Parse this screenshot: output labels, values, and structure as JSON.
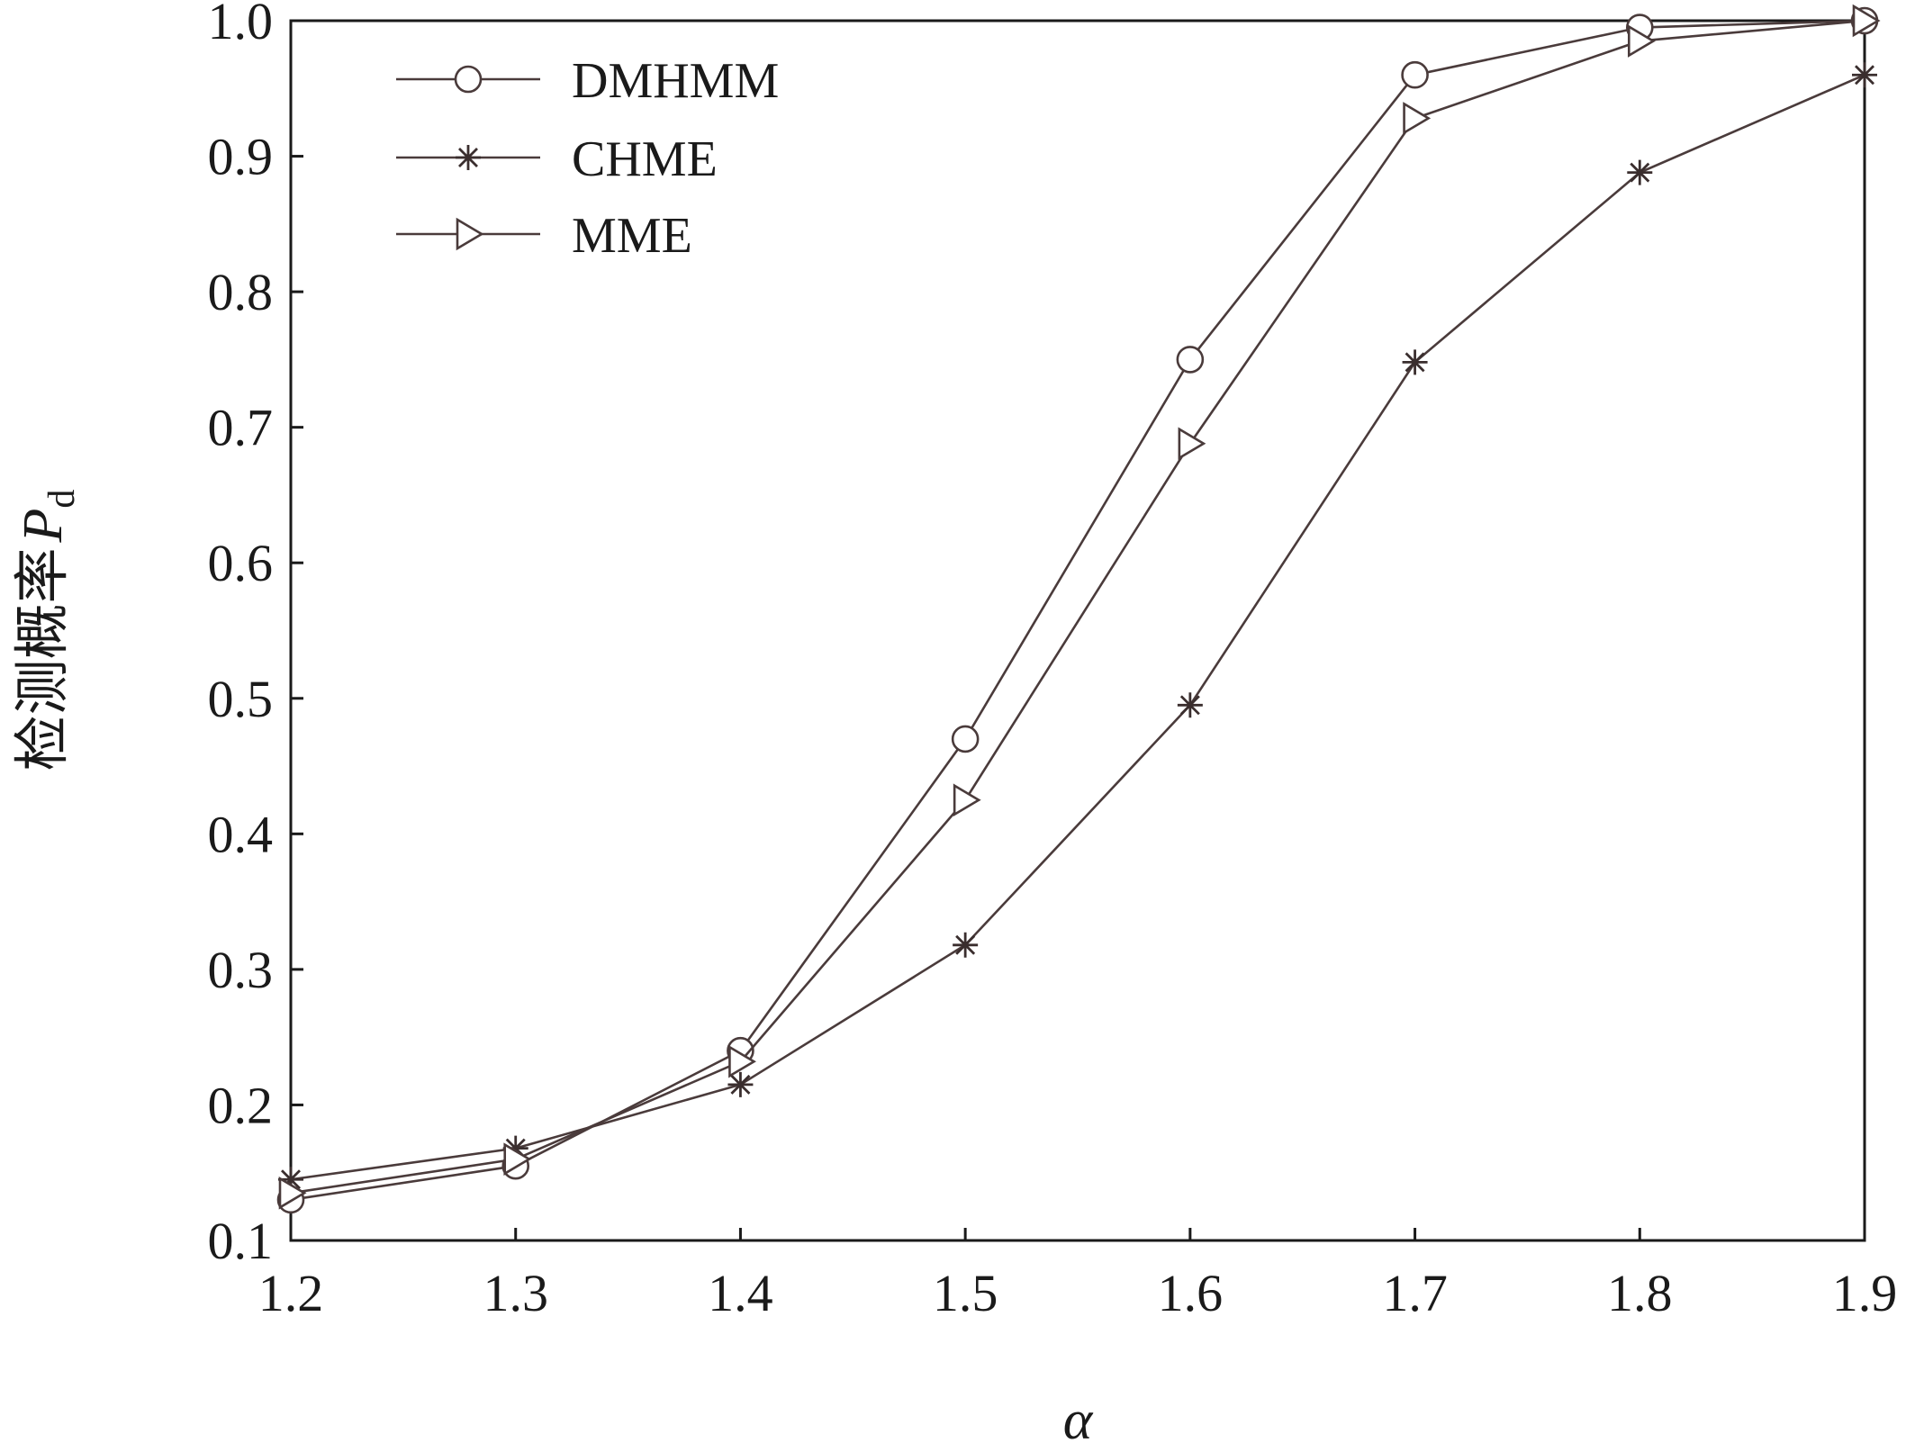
{
  "chart_data": {
    "type": "line",
    "xlabel": "α",
    "ylabel": "检测概率",
    "ylabel_symbol": "P",
    "ylabel_subscript": "d",
    "xlim": [
      1.2,
      1.9
    ],
    "ylim": [
      0.1,
      1.0
    ],
    "x": [
      1.2,
      1.3,
      1.4,
      1.5,
      1.6,
      1.7,
      1.8,
      1.9
    ],
    "x_tick_labels": [
      "1.2",
      "1.3",
      "1.4",
      "1.5",
      "1.6",
      "1.7",
      "1.8",
      "1.9"
    ],
    "y_tick_labels": [
      "0.1",
      "0.2",
      "0.3",
      "0.4",
      "0.5",
      "0.6",
      "0.7",
      "0.8",
      "0.9",
      "1.0"
    ],
    "grid": false,
    "legend_position": "top-left",
    "series": [
      {
        "name": "DMHMM",
        "marker": "circle",
        "values": [
          0.13,
          0.155,
          0.24,
          0.47,
          0.75,
          0.96,
          0.995,
          1.0
        ]
      },
      {
        "name": "CHME",
        "marker": "star",
        "values": [
          0.145,
          0.168,
          0.215,
          0.318,
          0.495,
          0.748,
          0.888,
          0.96
        ]
      },
      {
        "name": "MME",
        "marker": "triangle-right",
        "values": [
          0.135,
          0.16,
          0.232,
          0.425,
          0.688,
          0.928,
          0.985,
          1.0
        ]
      }
    ],
    "line_color": "#4a3b3b"
  }
}
